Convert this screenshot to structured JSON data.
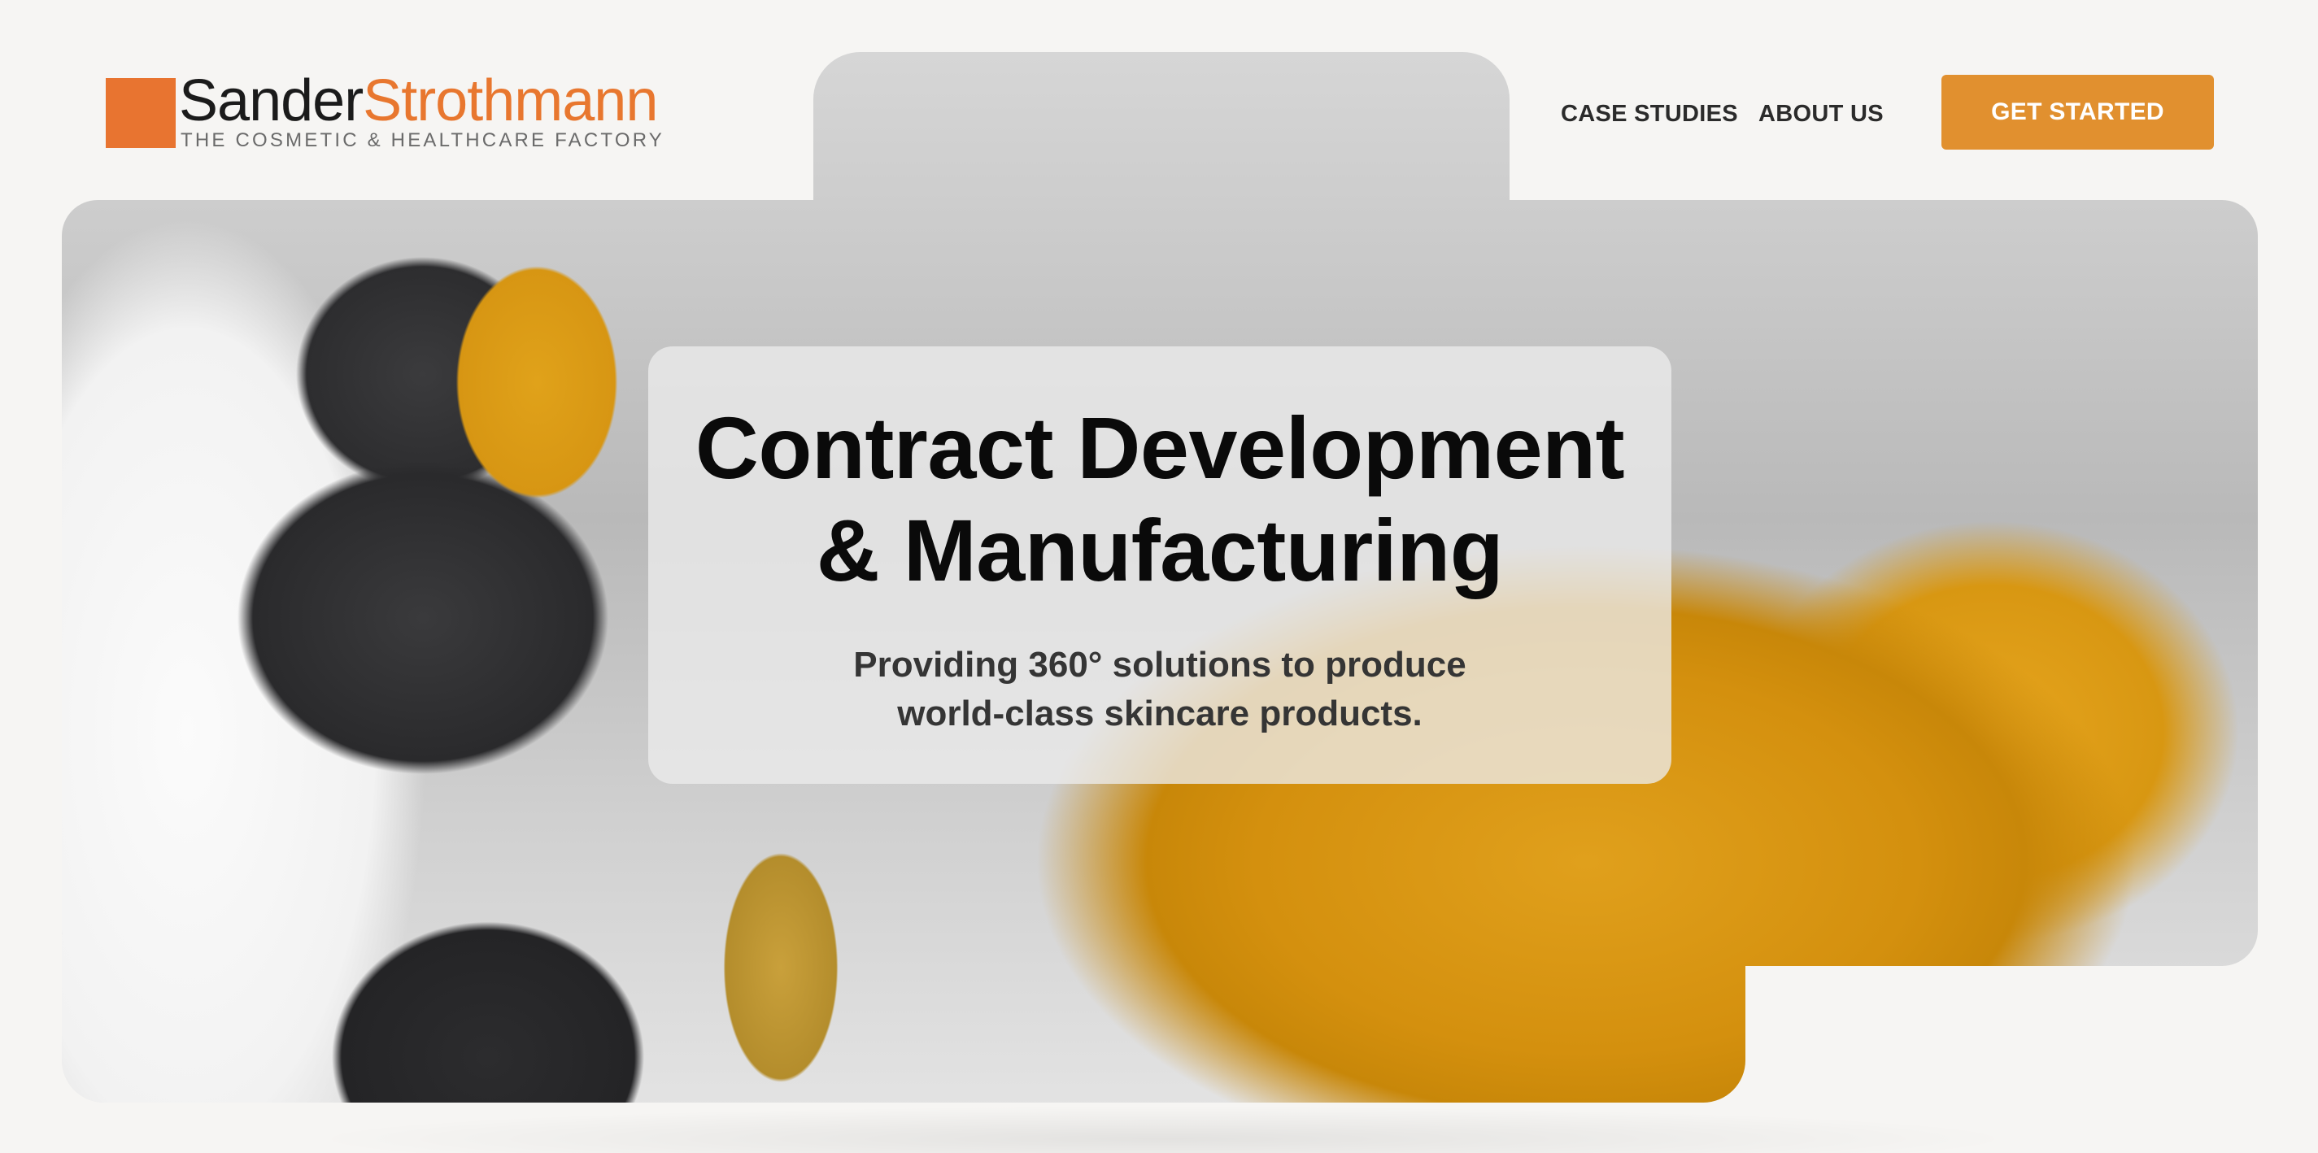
{
  "brand": {
    "name_part1": "Sander",
    "name_part2": "Strothmann",
    "tagline": "THE COSMETIC & HEALTHCARE FACTORY",
    "accent": "#e87430"
  },
  "nav": {
    "links": [
      {
        "label": "CASE STUDIES"
      },
      {
        "label": "ABOUT US"
      }
    ],
    "cta_label": "GET STARTED",
    "cta_color": "#e1902f"
  },
  "hero": {
    "headline_line1": "Contract Development",
    "headline_line2": "& Manufacturing",
    "subline_line1": "Providing 360° solutions to produce",
    "subline_line2": "world-class skincare products.",
    "image_icon": "factory-bottles-photo"
  }
}
